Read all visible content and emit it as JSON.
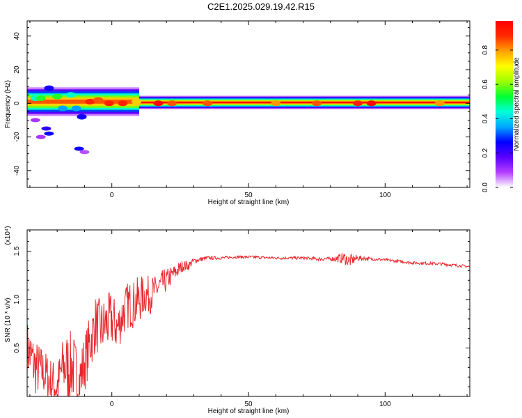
{
  "title": "C2E1.2025.029.19.42.R15",
  "colors": {
    "line": "#e8282d",
    "axes": "#000000",
    "colorbar": [
      "#ffffff",
      "#b33dff",
      "#5a00ff",
      "#0000ff",
      "#00a8ff",
      "#00ffd8",
      "#00ff33",
      "#9dff00",
      "#ffff00",
      "#ffa000",
      "#ff2a00",
      "#ff0000"
    ]
  },
  "chart_data": [
    {
      "type": "heatmap",
      "title": "",
      "xlabel": "Height of straight line (km)",
      "ylabel": "Frequency (Hz)",
      "xlim": [
        -31,
        131
      ],
      "ylim": [
        -50,
        49
      ],
      "x_ticks": [
        0,
        50,
        100
      ],
      "y_ticks": [
        -40,
        -20,
        0,
        20,
        40
      ],
      "colorbar": {
        "label": "Normalized spectral amplitude",
        "range": [
          0,
          0.97
        ],
        "ticks": [
          0.0,
          0.2,
          0.4,
          0.6,
          0.8
        ]
      },
      "band_segments": [
        {
          "x0": -31,
          "x1": 10,
          "f0": -6,
          "f1": 8,
          "peak": 0.85
        },
        {
          "x0": 10,
          "x1": 131,
          "f0": -2,
          "f1": 3,
          "peak": 0.95
        }
      ],
      "blobs": [
        {
          "x": -28,
          "f": 3,
          "amp": 0.45
        },
        {
          "x": -26,
          "f": 3,
          "amp": 0.55
        },
        {
          "x": -23,
          "f": 9,
          "amp": 0.25
        },
        {
          "x": -20,
          "f": 4,
          "amp": 0.55
        },
        {
          "x": -18,
          "f": -3,
          "amp": 0.35
        },
        {
          "x": -15,
          "f": 5,
          "amp": 0.45
        },
        {
          "x": -13,
          "f": -3,
          "amp": 0.35
        },
        {
          "x": -11,
          "f": -8,
          "amp": 0.25
        },
        {
          "x": -8,
          "f": 1,
          "amp": 0.9
        },
        {
          "x": -5,
          "f": 2,
          "amp": 0.85
        },
        {
          "x": -1,
          "f": 0,
          "amp": 0.9
        },
        {
          "x": 4,
          "f": 0,
          "amp": 0.9
        },
        {
          "x": 9,
          "f": 1,
          "amp": 0.75
        },
        {
          "x": 17,
          "f": 0,
          "amp": 0.95
        },
        {
          "x": 22,
          "f": 0,
          "amp": 0.85
        },
        {
          "x": 35,
          "f": 0,
          "amp": 0.85
        },
        {
          "x": 60,
          "f": 0,
          "amp": 0.8
        },
        {
          "x": 75,
          "f": 0,
          "amp": 0.85
        },
        {
          "x": 90,
          "f": 0,
          "amp": 0.9
        },
        {
          "x": 95,
          "f": 0,
          "amp": 0.95
        },
        {
          "x": 120,
          "f": 0,
          "amp": 0.8
        },
        {
          "x": -24,
          "f": -15,
          "amp": 0.22
        },
        {
          "x": -23,
          "f": -18,
          "amp": 0.25
        },
        {
          "x": -26,
          "f": -20,
          "amp": 0.1
        },
        {
          "x": -28,
          "f": -10,
          "amp": 0.1
        },
        {
          "x": -12,
          "f": -27,
          "amp": 0.25
        },
        {
          "x": -10,
          "f": -29,
          "amp": 0.08
        }
      ]
    },
    {
      "type": "line",
      "title": "",
      "xlabel": "Height of straight line (km)",
      "ylabel": "SNR (10 * v/v)",
      "y_multiplier": "(x10⁴)",
      "xlim": [
        -31,
        131
      ],
      "ylim": [
        0,
        1.72
      ],
      "x_ticks": [
        0,
        50,
        100
      ],
      "y_ticks": [
        0.5,
        1.0,
        1.5
      ],
      "y_tick_labels": [
        "0.5",
        "1.0",
        "1.5"
      ],
      "series": [
        {
          "x": [
            -31,
            -28,
            -25,
            -22,
            -20,
            -18,
            -16,
            -14,
            -12,
            -10,
            -8,
            -6,
            -4,
            -2,
            0,
            2,
            4,
            6,
            8,
            10,
            12,
            14,
            16,
            18,
            20,
            22,
            24,
            26,
            28,
            30,
            35,
            40,
            45,
            50,
            60,
            70,
            75,
            80,
            85,
            87,
            90,
            95,
            100,
            110,
            120,
            131
          ],
          "values": [
            0.5,
            0.3,
            0.25,
            0.15,
            0.1,
            0.3,
            0.3,
            0.3,
            0.15,
            0.35,
            0.55,
            0.75,
            0.7,
            0.75,
            0.8,
            0.7,
            0.85,
            0.95,
            0.95,
            1.0,
            1.05,
            1.05,
            1.1,
            1.15,
            1.2,
            1.25,
            1.3,
            1.35,
            1.35,
            1.4,
            1.43,
            1.43,
            1.44,
            1.44,
            1.43,
            1.43,
            1.42,
            1.42,
            1.43,
            1.4,
            1.43,
            1.42,
            1.41,
            1.38,
            1.37,
            1.34
          ],
          "noise": [
            0.3,
            0.3,
            0.25,
            0.25,
            0.25,
            0.3,
            0.4,
            0.35,
            0.3,
            0.3,
            0.3,
            0.3,
            0.3,
            0.3,
            0.3,
            0.25,
            0.25,
            0.25,
            0.25,
            0.25,
            0.2,
            0.2,
            0.15,
            0.15,
            0.12,
            0.1,
            0.08,
            0.06,
            0.05,
            0.03,
            0.02,
            0.015,
            0.015,
            0.015,
            0.015,
            0.015,
            0.02,
            0.02,
            0.06,
            0.07,
            0.03,
            0.015,
            0.015,
            0.015,
            0.015,
            0.015
          ]
        }
      ]
    }
  ]
}
